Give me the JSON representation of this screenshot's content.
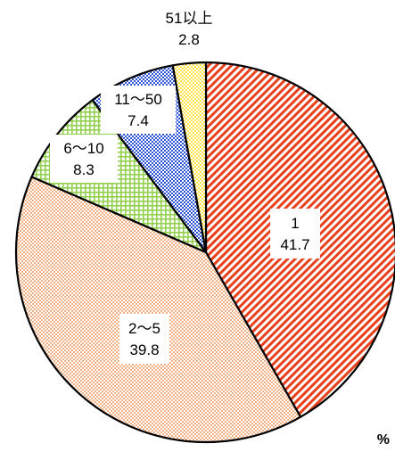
{
  "chart_data": {
    "type": "pie",
    "unit": "%",
    "start_angle_deg": 0,
    "direction": "clockwise",
    "slices": [
      {
        "label": "1",
        "value": 41.7,
        "color": "#e8401c",
        "pattern": "diagonal-stripes"
      },
      {
        "label": "2～5",
        "value": 39.8,
        "color": "#f4b183",
        "pattern": "dense-checker"
      },
      {
        "label": "6～10",
        "value": 8.3,
        "color": "#92d050",
        "pattern": "grid"
      },
      {
        "label": "11～50",
        "value": 7.4,
        "color": "#2f55d4",
        "pattern": "checker"
      },
      {
        "label": "51以上",
        "value": 2.8,
        "color": "#ffe34d",
        "pattern": "dots"
      }
    ]
  }
}
